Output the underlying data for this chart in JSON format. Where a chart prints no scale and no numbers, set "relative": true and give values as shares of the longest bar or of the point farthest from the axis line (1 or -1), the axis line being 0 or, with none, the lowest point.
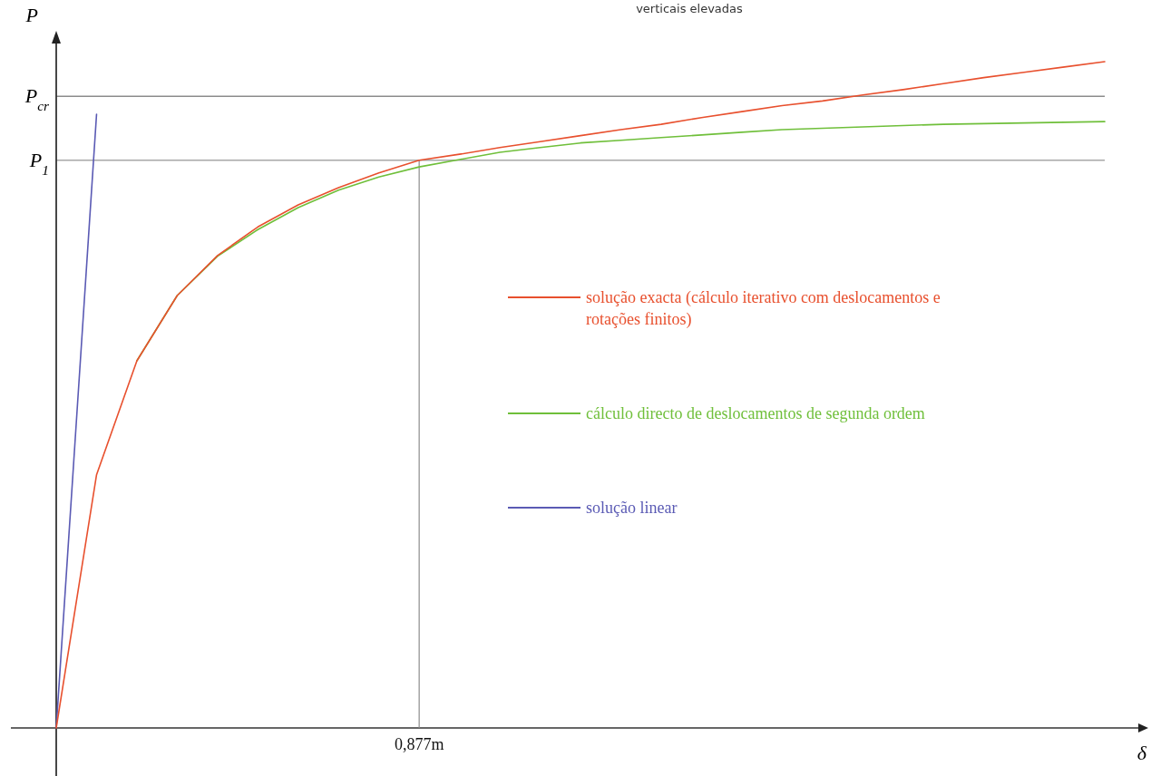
{
  "chart_data": {
    "type": "line",
    "xlabel": "δ",
    "ylabel": "P",
    "annotations": [
      "verticais elevadas",
      "0,877m"
    ],
    "relative": true,
    "categories": [
      null,
      null,
      null,
      null,
      null,
      null,
      null,
      null,
      null,
      null,
      null,
      null,
      null,
      null,
      null,
      null,
      null,
      null,
      null,
      null,
      null,
      null,
      null,
      null,
      null,
      null,
      null
    ],
    "ref_lines": [
      {
        "axis": "y",
        "value": 0.948,
        "label": "P$_{cr}$",
        "color": "#8c8c8c"
      },
      {
        "axis": "y",
        "value": 0.852,
        "label": "P$_{1}$",
        "color": "#a8a8a8"
      }
    ],
    "legend": "right",
    "marker": "none",
    "line_style": "solid",
    "series": [
      {
        "name": "solução exacta (cálculo iterativo com deslocamentos e rotações finitos)",
        "color": "#e8502e",
        "values": [
          0,
          0.38,
          0.551,
          0.649,
          0.709,
          0.752,
          0.785,
          0.811,
          0.833,
          0.852,
          0.861,
          0.871,
          0.88,
          0.889,
          0.898,
          0.906,
          0.916,
          0.925,
          0.934,
          0.941,
          0.95,
          0.958,
          0.967,
          0.976,
          0.984,
          0.992,
          1
        ]
      },
      {
        "name": "cálculo directo de deslocamentos de segunda ordem",
        "color": "#6fbf3a",
        "values": [
          null,
          null,
          0.551,
          0.649,
          0.708,
          0.748,
          0.781,
          0.807,
          0.827,
          0.842,
          0.853,
          0.864,
          0.871,
          0.878,
          0.882,
          0.886,
          0.89,
          0.894,
          0.898,
          0.9,
          0.902,
          0.904,
          0.906,
          0.907,
          0.908,
          0.909,
          0.91
        ]
      },
      {
        "name": "solução linear",
        "color": "#5a5ab4",
        "values": [
          0,
          0.921,
          null,
          null,
          null,
          null,
          null,
          null,
          null,
          null,
          null,
          null,
          null,
          null,
          null,
          null,
          null,
          null,
          null,
          null,
          null,
          null,
          null,
          null,
          null,
          null,
          null
        ]
      }
    ]
  }
}
